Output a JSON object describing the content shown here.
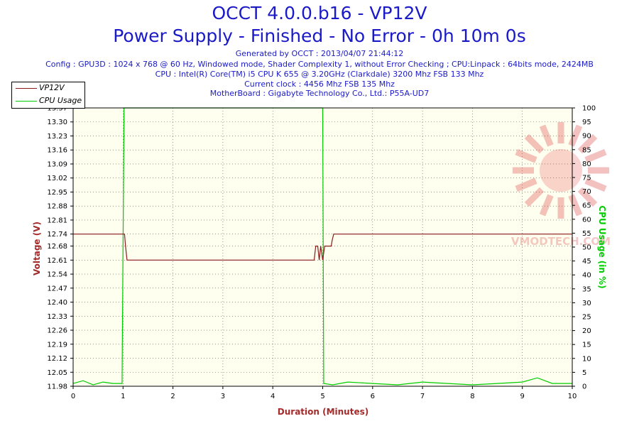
{
  "header": {
    "title": "OCCT 4.0.0.b16 - VP12V",
    "subtitle": "Power Supply - Finished - No Error - 0h 10m 0s",
    "generated": "Generated by OCCT : 2013/04/07 21:44:12",
    "config": "Config : GPU3D : 1024 x 768 @ 60 Hz, Windowed mode, Shader Complexity 1, without Error Checking ; CPU:Linpack : 64bits mode, 2424MB",
    "cpu": "CPU : Intel(R) Core(TM) i5 CPU K 655 @ 3.20GHz (Clarkdale) 3200 Mhz FSB 133 Mhz",
    "clock": "Current clock : 4456 Mhz FSB 135 Mhz",
    "motherboard": "MotherBoard : Gigabyte Technology Co., Ltd.: P55A-UD7"
  },
  "legend": {
    "series1": "VP12V",
    "series2": "CPU Usage"
  },
  "colors": {
    "voltage": "#8b1a1a",
    "cpu": "#00cc00",
    "title": "#1a1ac8",
    "grid": "#555555",
    "plot_bg": "#fffff0"
  },
  "chart_data": {
    "type": "line",
    "title": "OCCT 4.0.0.b16 - VP12V",
    "xlabel": "Duration (Minutes)",
    "ylabel": "Voltage (V)",
    "y2label": "CPU Usage (in %)",
    "xlim": [
      0,
      10
    ],
    "ylim": [
      11.98,
      13.37
    ],
    "y2lim": [
      0,
      100
    ],
    "x_ticks": [
      "0",
      "1",
      "2",
      "3",
      "4",
      "5",
      "6",
      "7",
      "8",
      "9",
      "10"
    ],
    "y_ticks": [
      "11.98",
      "12.05",
      "12.12",
      "12.19",
      "12.26",
      "12.33",
      "12.40",
      "12.47",
      "12.54",
      "12.61",
      "12.68",
      "12.74",
      "12.81",
      "12.88",
      "12.95",
      "13.02",
      "13.09",
      "13.16",
      "13.23",
      "13.30",
      "13.37"
    ],
    "y2_ticks": [
      "0",
      "5",
      "10",
      "15",
      "20",
      "25",
      "30",
      "35",
      "40",
      "45",
      "50",
      "55",
      "60",
      "65",
      "70",
      "75",
      "80",
      "85",
      "90",
      "95",
      "100"
    ],
    "series": [
      {
        "name": "VP12V",
        "axis": "left",
        "x": [
          0,
          1.03,
          1.05,
          1.08,
          4.83,
          4.86,
          4.9,
          4.93,
          4.96,
          5.0,
          5.04,
          5.08,
          5.12,
          5.17,
          5.19,
          5.22,
          10
        ],
        "y": [
          12.74,
          12.74,
          12.68,
          12.61,
          12.61,
          12.68,
          12.68,
          12.61,
          12.68,
          12.61,
          12.68,
          12.68,
          12.68,
          12.68,
          12.71,
          12.74,
          12.74
        ]
      },
      {
        "name": "CPU Usage",
        "axis": "right",
        "x": [
          0,
          0.2,
          0.4,
          0.6,
          0.8,
          0.98,
          1.02,
          1.06,
          1.1,
          2,
          3,
          4,
          4.98,
          5.0,
          5.02,
          5.2,
          5.5,
          6,
          6.5,
          7,
          7.5,
          8,
          8.5,
          9,
          9.3,
          9.6,
          10
        ],
        "y": [
          1,
          2,
          0.5,
          1.5,
          1,
          1,
          100,
          100,
          100,
          100,
          100,
          100,
          100,
          100,
          1,
          0.5,
          1.5,
          1,
          0.5,
          1.5,
          1,
          0.5,
          1,
          1.5,
          3,
          1,
          1
        ]
      }
    ],
    "grid": true,
    "legend_position": "top-left"
  },
  "watermark": "VMODTECH.COM"
}
